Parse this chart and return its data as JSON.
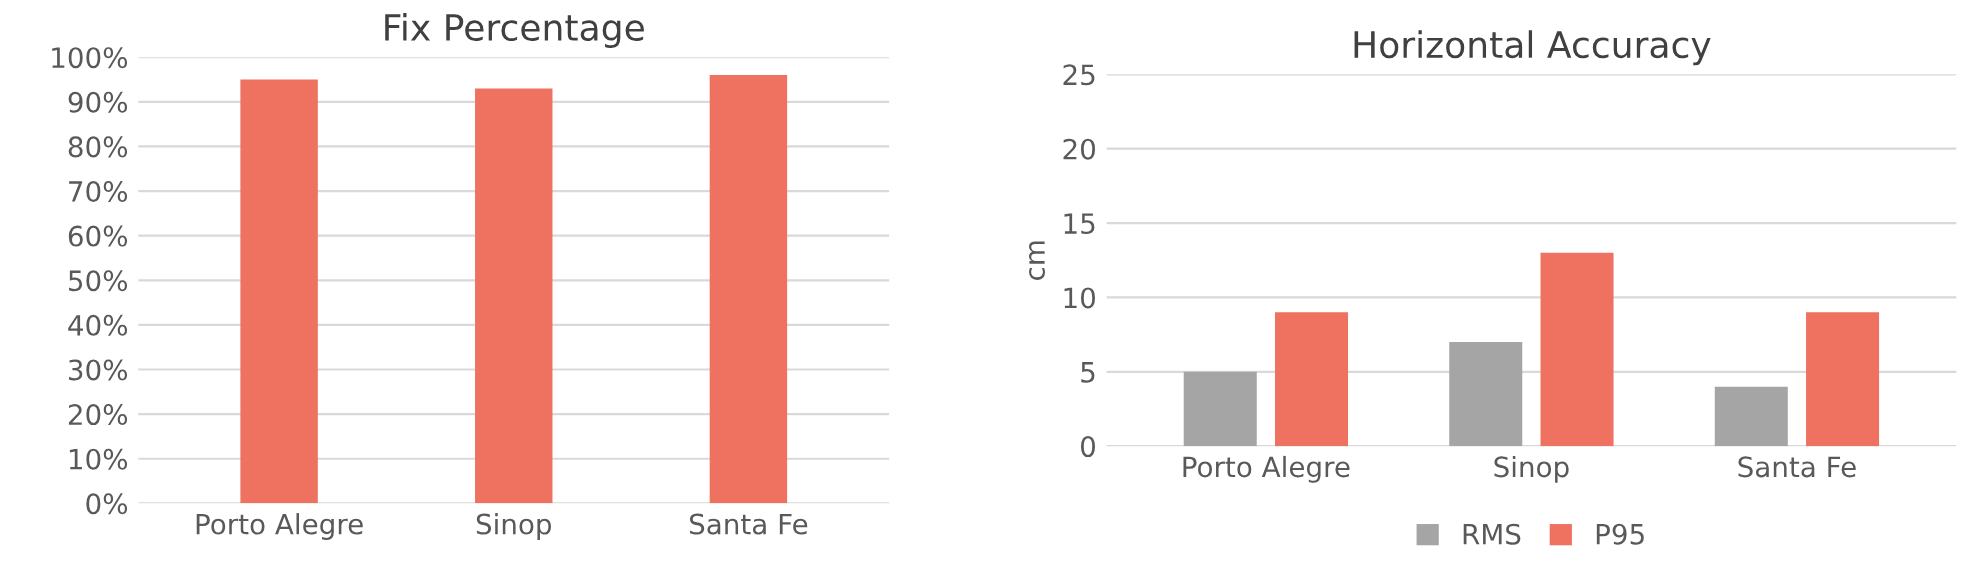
{
  "chart_data": [
    {
      "type": "bar",
      "title": "Fix Percentage",
      "categories": [
        "Porto Alegre",
        "Sinop",
        "Santa Fe"
      ],
      "series": [
        {
          "color": "#ef7160",
          "values": [
            95,
            93,
            96
          ]
        }
      ],
      "ylim": [
        0,
        100
      ],
      "yticks": [
        {
          "value": 0,
          "label": "0%"
        },
        {
          "value": 10,
          "label": "10%"
        },
        {
          "value": 20,
          "label": "20%"
        },
        {
          "value": 30,
          "label": "30%"
        },
        {
          "value": 40,
          "label": "40%"
        },
        {
          "value": 50,
          "label": "50%"
        },
        {
          "value": 60,
          "label": "60%"
        },
        {
          "value": 70,
          "label": "70%"
        },
        {
          "value": 80,
          "label": "80%"
        },
        {
          "value": 90,
          "label": "90%"
        },
        {
          "value": 100,
          "label": "100%"
        }
      ],
      "grid": "y",
      "legend": false
    },
    {
      "type": "bar",
      "title": "Horizontal Accuracy",
      "ylabel": "cm",
      "categories": [
        "Porto Alegre",
        "Sinop",
        "Santa Fe"
      ],
      "series": [
        {
          "name": "RMS",
          "color": "#a5a5a5",
          "values": [
            5,
            7,
            4
          ]
        },
        {
          "name": "P95",
          "color": "#ef7160",
          "values": [
            9,
            13,
            9
          ]
        }
      ],
      "ylim": [
        0,
        25
      ],
      "yticks": [
        0,
        5,
        10,
        15,
        20,
        25
      ],
      "grid": "y",
      "legend": "bottom"
    }
  ]
}
